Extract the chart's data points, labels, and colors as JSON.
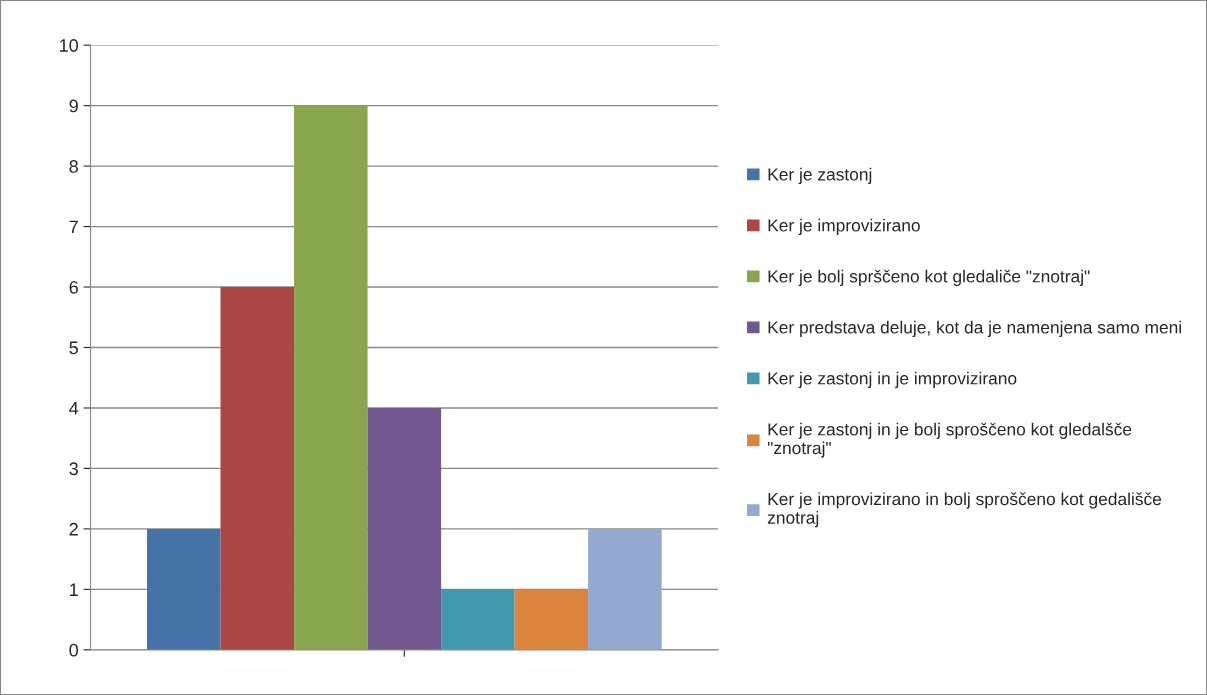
{
  "chart_data": {
    "type": "bar",
    "categories": [
      null
    ],
    "series": [
      {
        "name": "Ker je zastonj",
        "color": "#4572a7",
        "values": [
          2
        ]
      },
      {
        "name": "Ker je improvizirano",
        "color": "#aa4643",
        "values": [
          6
        ]
      },
      {
        "name": "Ker je bolj sprščeno kot gledaliče \"znotraj\"",
        "color": "#89a54e",
        "values": [
          9
        ]
      },
      {
        "name": "Ker predstava deluje, kot da je namenjena samo meni",
        "color": "#71588f",
        "values": [
          4
        ]
      },
      {
        "name": "Ker je zastonj in je improvizirano",
        "color": "#4198af",
        "values": [
          1
        ]
      },
      {
        "name": "Ker je zastonj in je bolj sproščeno kot gledalšče \"znotraj\"",
        "color": "#db843d",
        "values": [
          1
        ]
      },
      {
        "name": "Ker je improvizirano in bolj sproščeno kot gedališče znotraj",
        "color": "#93a9cf",
        "values": [
          2
        ]
      }
    ],
    "ylim": [
      0,
      10
    ],
    "yticks": [
      0,
      1,
      2,
      3,
      4,
      5,
      6,
      7,
      8,
      9,
      10
    ],
    "grid": "y",
    "legend": "right"
  }
}
